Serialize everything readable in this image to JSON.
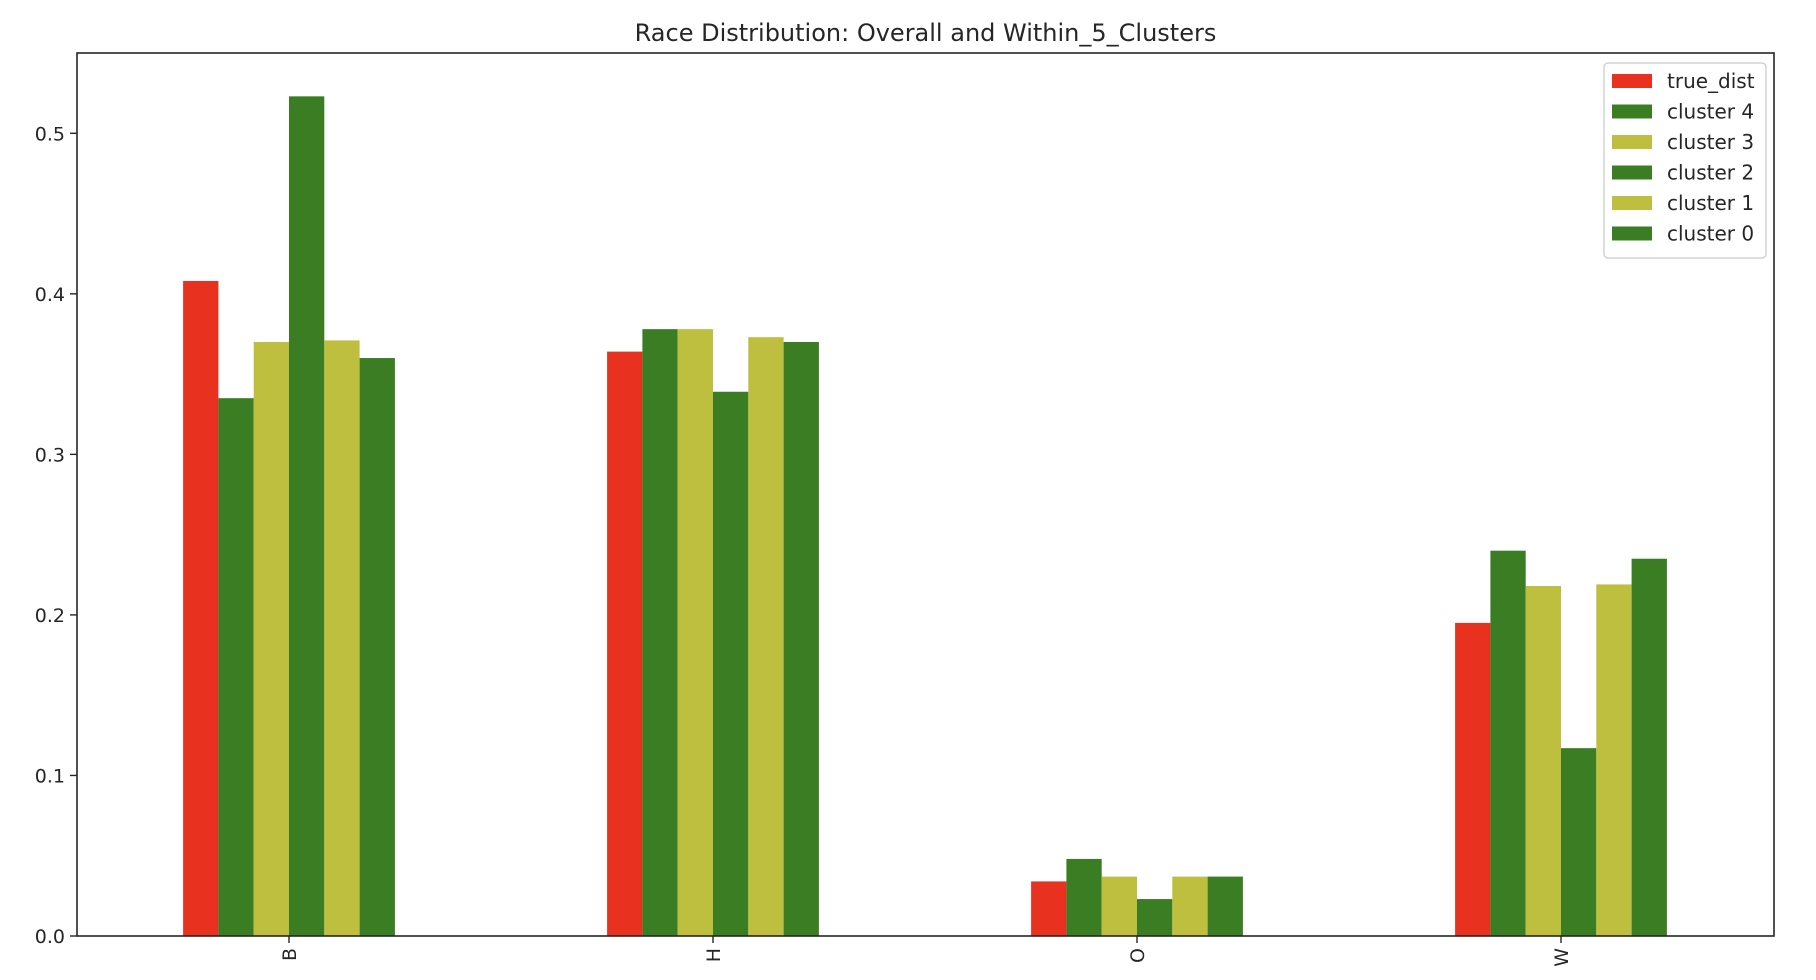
{
  "chart_data": {
    "type": "bar",
    "title": "Race Distribution: Overall and Within_5_Clusters",
    "xlabel": "",
    "ylabel": "",
    "categories": [
      "B",
      "H",
      "O",
      "W"
    ],
    "ylim": [
      0,
      0.55
    ],
    "yticks": [
      0.0,
      0.1,
      0.2,
      0.3,
      0.4,
      0.5
    ],
    "ytick_labels": [
      "0.0",
      "0.1",
      "0.2",
      "0.3",
      "0.4",
      "0.5"
    ],
    "grid": false,
    "legend_position": "top-right",
    "series": [
      {
        "name": "true_dist",
        "color": "#e8321f",
        "values": [
          0.408,
          0.364,
          0.034,
          0.195
        ]
      },
      {
        "name": "cluster 4",
        "color": "#3a7d22",
        "values": [
          0.335,
          0.378,
          0.048,
          0.24
        ]
      },
      {
        "name": "cluster 3",
        "color": "#bfbf3f",
        "values": [
          0.37,
          0.378,
          0.037,
          0.218
        ]
      },
      {
        "name": "cluster 2",
        "color": "#3a7d22",
        "values": [
          0.523,
          0.339,
          0.023,
          0.117
        ]
      },
      {
        "name": "cluster 1",
        "color": "#bfbf3f",
        "values": [
          0.371,
          0.373,
          0.037,
          0.219
        ]
      },
      {
        "name": "cluster 0",
        "color": "#3a7d22",
        "values": [
          0.36,
          0.37,
          0.037,
          0.235
        ]
      }
    ]
  }
}
